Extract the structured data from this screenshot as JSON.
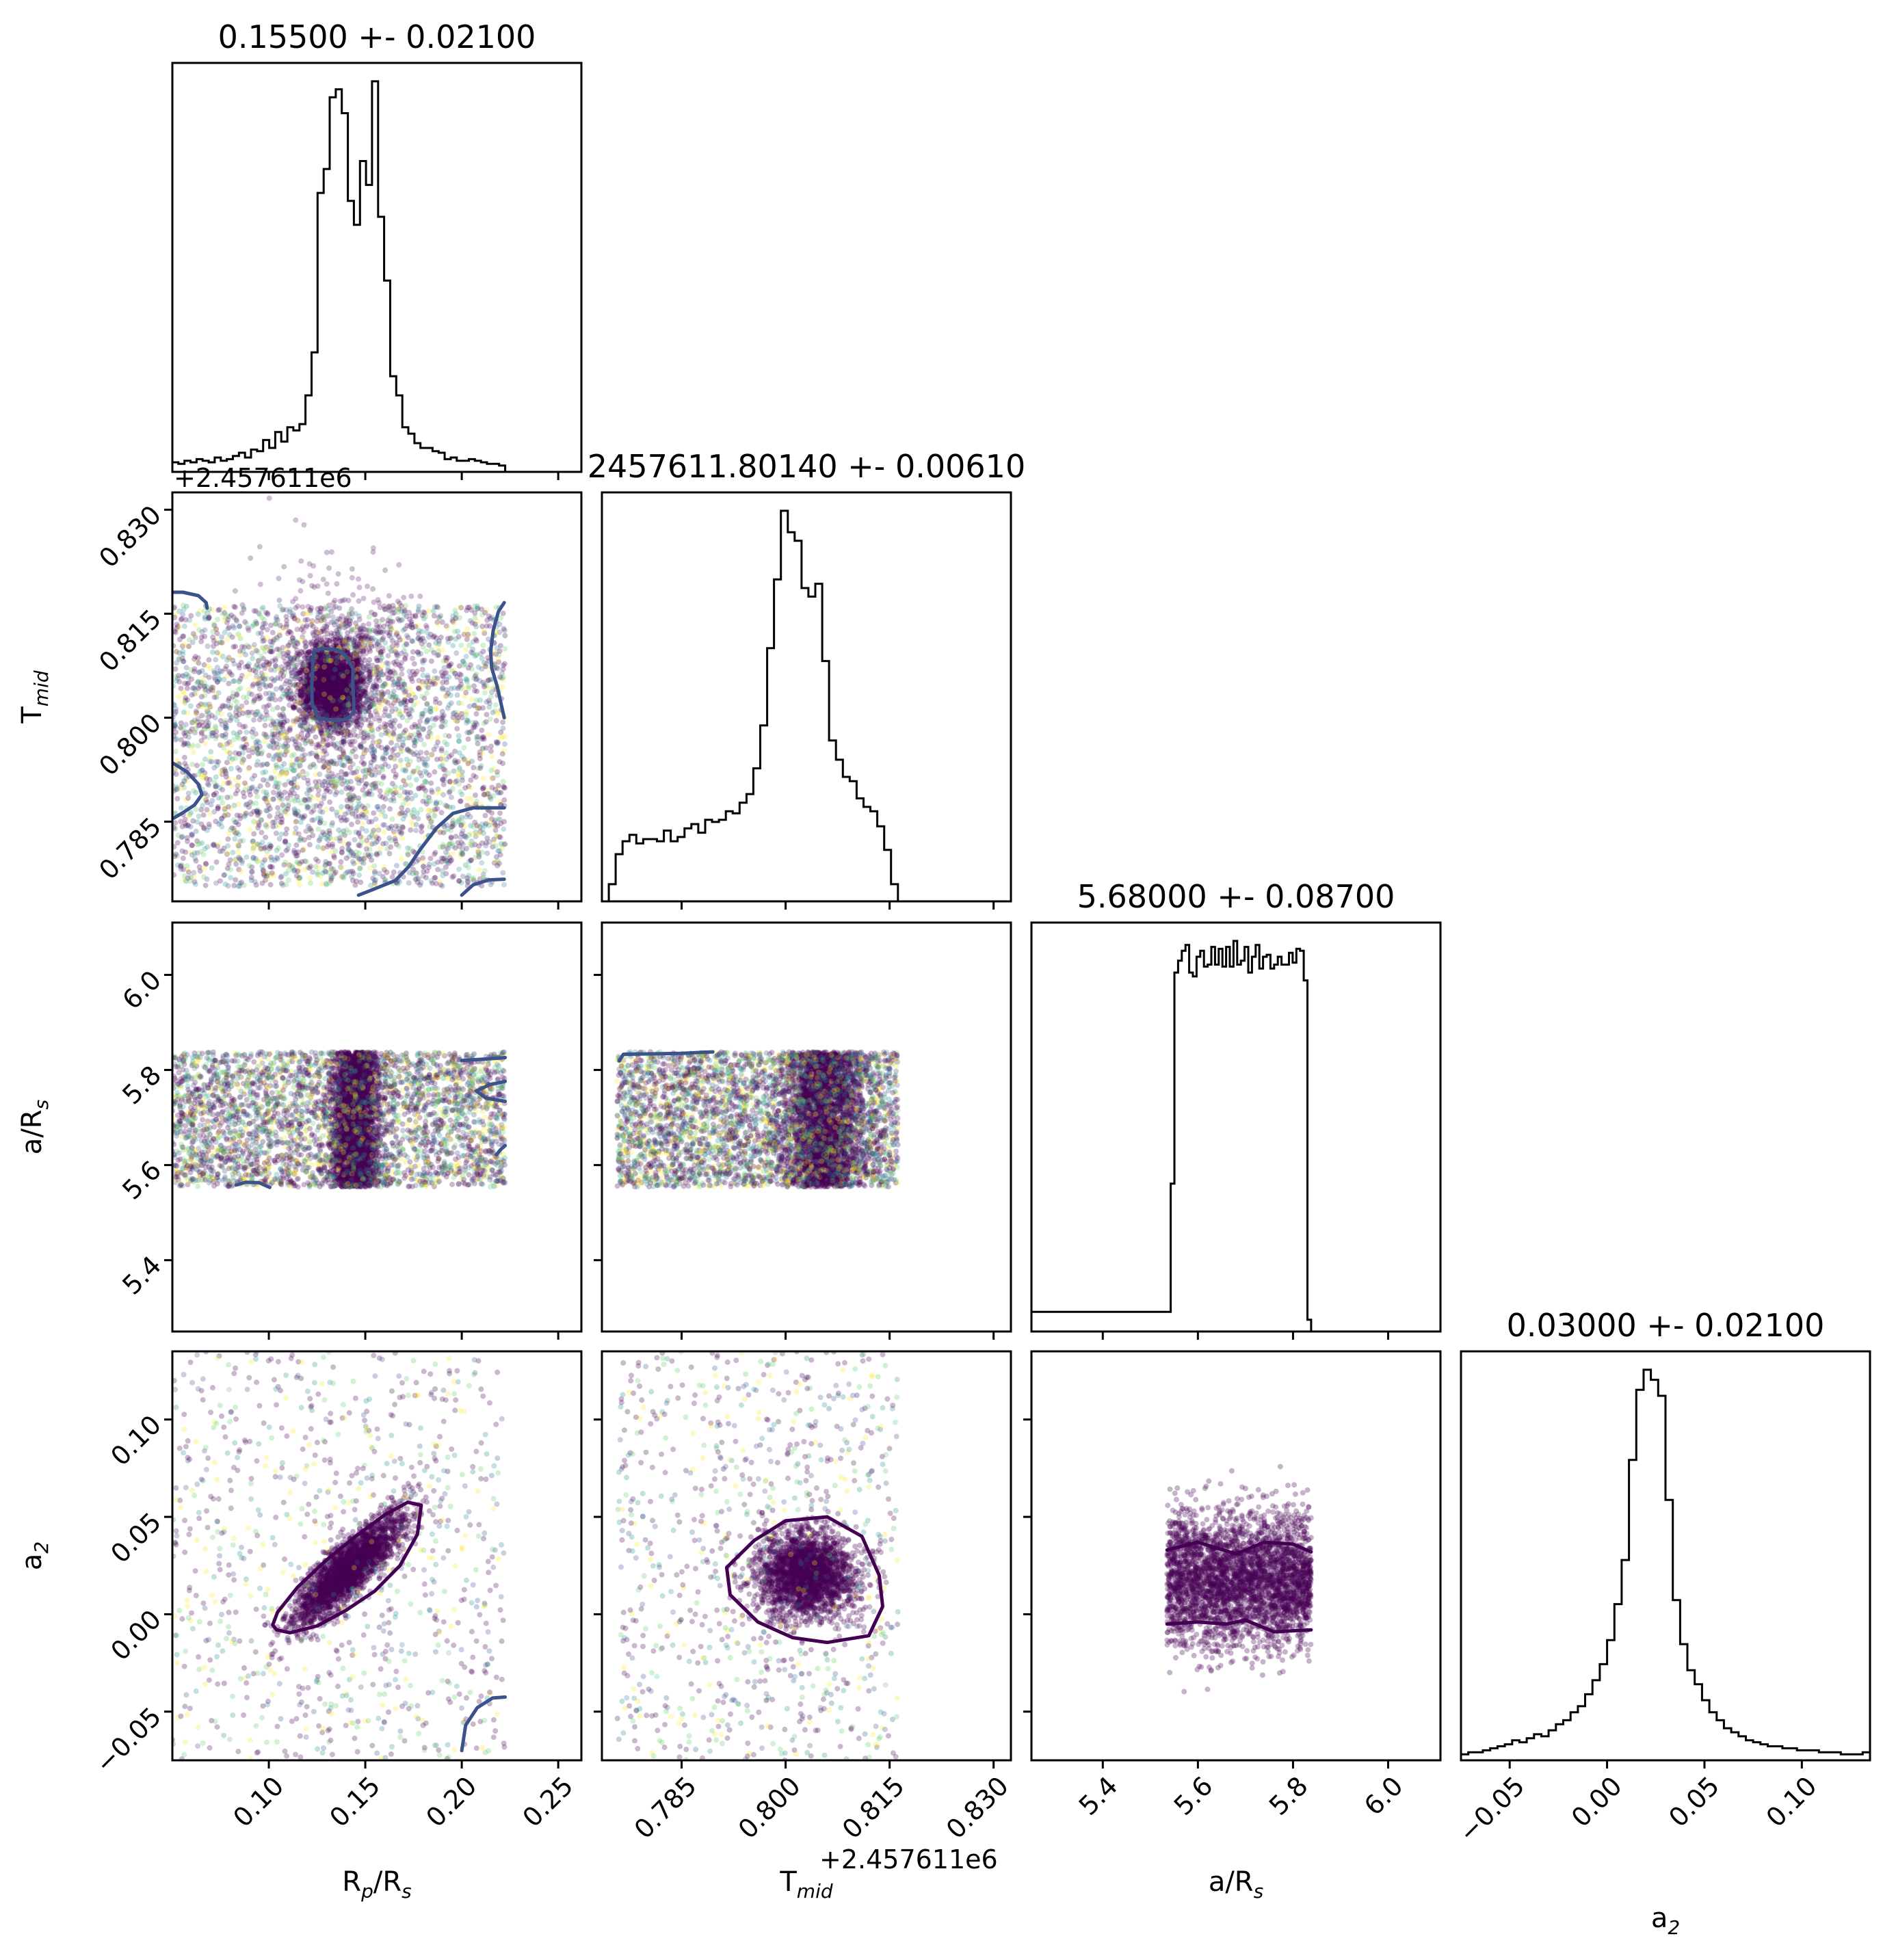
{
  "chart_data": {
    "type": "corner",
    "parameters": [
      {
        "key": "rp",
        "label_main": "R",
        "label_sub": "p",
        "label_tail": "/R",
        "label_sub2": "s",
        "range": [
          0.05,
          0.262
        ],
        "ticks": [
          "0.10",
          "0.15",
          "0.20",
          "0.25"
        ],
        "tick_values": [
          0.1,
          0.15,
          0.2,
          0.25
        ]
      },
      {
        "key": "tmid",
        "label_main": "T",
        "label_sub": "mid",
        "label_tail": "",
        "label_sub2": "",
        "range": [
          0.7735,
          0.8325
        ],
        "ticks": [
          "0.785",
          "0.800",
          "0.815",
          "0.830"
        ],
        "tick_values": [
          0.785,
          0.8,
          0.815,
          0.83
        ],
        "offset": "+2.457611e6"
      },
      {
        "key": "ars",
        "label_main": "a/R",
        "label_sub": "s",
        "label_tail": "",
        "label_sub2": "",
        "range": [
          5.25,
          6.11
        ],
        "ticks": [
          "5.4",
          "5.6",
          "5.8",
          "6.0"
        ],
        "tick_values": [
          5.4,
          5.6,
          5.8,
          6.0
        ]
      },
      {
        "key": "a2",
        "label_main": "a",
        "label_sub": "2",
        "label_tail": "",
        "label_sub2": "",
        "range": [
          -0.075,
          0.135
        ],
        "ticks": [
          "−0.05",
          "0.00",
          "0.05",
          "0.10"
        ],
        "tick_values": [
          -0.05,
          0.0,
          0.05,
          0.1
        ]
      }
    ],
    "titles": [
      "0.15500 +- 0.02100",
      "2457611.80140 +- 0.00610",
      "5.68000 +- 0.08700",
      "0.03000 +- 0.02100"
    ],
    "colors": {
      "histogram": "#000000",
      "points": "#440154",
      "contour_main": "#440154",
      "contour_secondary": "#3b528b"
    },
    "histograms": [
      {
        "edges": [
          0.05,
          0.2225
        ],
        "counts": [
          6,
          5,
          7,
          6,
          8,
          7,
          6,
          9,
          7,
          8,
          10,
          12,
          9,
          14,
          13,
          20,
          15,
          25,
          19,
          28,
          26,
          30,
          48,
          75,
          175,
          190,
          235,
          240,
          225,
          170,
          155,
          195,
          180,
          245,
          160,
          120,
          60,
          48,
          28,
          24,
          18,
          15,
          15,
          13,
          12,
          8,
          9,
          7,
          7,
          8,
          7,
          6,
          5,
          5,
          4
        ]
      },
      {
        "edges": [
          0.7735,
          0.8162
        ],
        "counts": [
          0,
          8,
          22,
          28,
          31,
          27,
          29,
          29,
          28,
          33,
          28,
          30,
          34,
          36,
          32,
          38,
          37,
          38,
          42,
          41,
          46,
          50,
          62,
          82,
          118,
          150,
          182,
          172,
          168,
          146,
          142,
          148,
          112,
          75,
          66,
          58,
          56,
          48,
          44,
          42,
          35,
          24,
          8
        ]
      },
      {
        "edges": [
          5.535,
          5.838
        ],
        "counts": [
          10,
          75,
          182,
          188,
          193,
          196,
          182,
          180,
          190,
          193,
          185,
          186,
          195,
          186,
          194,
          185,
          195,
          185,
          198,
          186,
          188,
          195,
          182,
          190,
          196,
          184,
          190,
          191,
          184,
          186,
          190,
          186,
          186,
          192,
          187,
          194,
          193,
          178,
          6
        ]
      },
      {
        "edges": [
          -0.075,
          0.135
        ],
        "counts": [
          3,
          4,
          4,
          5,
          6,
          7,
          8,
          10,
          9,
          11,
          13,
          12,
          15,
          18,
          20,
          24,
          27,
          33,
          40,
          48,
          60,
          78,
          100,
          150,
          185,
          195,
          190,
          182,
          130,
          80,
          58,
          45,
          38,
          30,
          24,
          20,
          16,
          14,
          12,
          10,
          9,
          8,
          7,
          7,
          6,
          6,
          5,
          5,
          5,
          4,
          4,
          4,
          3,
          3,
          3,
          4
        ]
      }
    ],
    "scatter_pairs": [
      {
        "row": 1,
        "col": 0,
        "contours": [
          {
            "color": "secondary",
            "points": [
              [
                0.1235,
                0.8096
              ],
              [
                0.1275,
                0.81
              ],
              [
                0.1355,
                0.8098
              ],
              [
                0.1395,
                0.809
              ],
              [
                0.1436,
                0.8071
              ],
              [
                0.1435,
                0.8046
              ],
              [
                0.144,
                0.8025
              ],
              [
                0.144,
                0.8008
              ],
              [
                0.1405,
                0.7998
              ],
              [
                0.1345,
                0.7996
              ],
              [
                0.1255,
                0.7999
              ],
              [
                0.1225,
                0.8019
              ],
              [
                0.1223,
                0.8046
              ],
              [
                0.1227,
                0.8076
              ],
              [
                0.1235,
                0.8096
              ]
            ]
          },
          {
            "color": "secondary",
            "points": [
              [
                0.05,
                0.7935
              ],
              [
                0.0575,
                0.7922
              ],
              [
                0.0635,
                0.7904
              ],
              [
                0.0653,
                0.7889
              ],
              [
                0.0615,
                0.7874
              ],
              [
                0.0555,
                0.7863
              ],
              [
                0.05,
                0.7854
              ]
            ]
          },
          {
            "color": "secondary",
            "points": [
              [
                0.05,
                0.8181
              ],
              [
                0.0555,
                0.8181
              ],
              [
                0.0635,
                0.8176
              ],
              [
                0.0675,
                0.8166
              ],
              [
                0.068,
                0.8158
              ]
            ]
          },
          {
            "color": "secondary",
            "points": [
              [
                0.222,
                0.8166
              ],
              [
                0.219,
                0.8153
              ],
              [
                0.2163,
                0.8126
              ],
              [
                0.215,
                0.8096
              ],
              [
                0.2155,
                0.8072
              ],
              [
                0.2183,
                0.8046
              ],
              [
                0.222,
                0.8
              ]
            ]
          },
          {
            "color": "secondary",
            "points": [
              [
                0.1465,
                0.7744
              ],
              [
                0.153,
                0.7751
              ],
              [
                0.1655,
                0.7765
              ],
              [
                0.1725,
                0.7785
              ],
              [
                0.1785,
                0.781
              ],
              [
                0.187,
                0.7841
              ],
              [
                0.1955,
                0.7862
              ],
              [
                0.206,
                0.787
              ],
              [
                0.222,
                0.787
              ]
            ]
          },
          {
            "color": "secondary",
            "points": [
              [
                0.2,
                0.7744
              ],
              [
                0.206,
                0.7759
              ],
              [
                0.214,
                0.7766
              ],
              [
                0.222,
                0.7767
              ]
            ]
          }
        ],
        "clusters": [
          {
            "cx": 0.1332,
            "cy": 0.8047,
            "sx": 0.008,
            "sy": 0.0028,
            "n": 2200,
            "alpha": 0.3
          },
          {
            "cx": 0.1335,
            "cy": 0.8045,
            "sx": 0.022,
            "sy": 0.008,
            "n": 900,
            "alpha": 0.25
          },
          {
            "uniform": true,
            "xr": [
              0.05,
              0.2225
            ],
            "yr": [
              0.7757,
              0.8162
            ],
            "n": 3200,
            "alpha": 0.28
          }
        ]
      },
      {
        "row": 2,
        "col": 0,
        "contours": [
          {
            "color": "secondary",
            "points": [
              [
                0.2225,
                5.826
              ],
              [
                0.216,
                5.824
              ],
              [
                0.2,
                5.82
              ]
            ]
          },
          {
            "color": "secondary",
            "points": [
              [
                0.2225,
                5.776
              ],
              [
                0.2145,
                5.769
              ],
              [
                0.2075,
                5.756
              ],
              [
                0.2125,
                5.741
              ],
              [
                0.2225,
                5.734
              ]
            ]
          },
          {
            "color": "secondary",
            "points": [
              [
                0.2225,
                5.641
              ],
              [
                0.22,
                5.632
              ],
              [
                0.218,
                5.622
              ]
            ]
          },
          {
            "color": "secondary",
            "points": [
              [
                0.083,
                5.558
              ],
              [
                0.088,
                5.564
              ],
              [
                0.095,
                5.563
              ],
              [
                0.1005,
                5.553
              ]
            ]
          }
        ],
        "clusters": [
          {
            "band": "x",
            "cx": 0.145,
            "sx": 0.006,
            "yr": [
              5.554,
              5.838
            ],
            "n": 2800,
            "alpha": 0.3
          },
          {
            "uniform": true,
            "xr": [
              0.05,
              0.2225
            ],
            "yr": [
              5.554,
              5.838
            ],
            "n": 3600,
            "alpha": 0.28
          }
        ]
      },
      {
        "row": 2,
        "col": 1,
        "contours": [
          {
            "color": "secondary",
            "points": [
              [
                0.776,
                5.819
              ],
              [
                0.7766,
                5.833
              ],
              [
                0.785,
                5.835
              ],
              [
                0.7895,
                5.838
              ]
            ]
          }
        ],
        "clusters": [
          {
            "band": "x",
            "cx": 0.8055,
            "sx": 0.0028,
            "yr": [
              5.554,
              5.838
            ],
            "n": 2800,
            "alpha": 0.3
          },
          {
            "uniform": true,
            "xr": [
              0.7757,
              0.8162
            ],
            "yr": [
              5.554,
              5.838
            ],
            "n": 3600,
            "alpha": 0.28
          }
        ]
      },
      {
        "row": 3,
        "col": 0,
        "contours": [
          {
            "color": "main",
            "points": [
              [
                0.102,
                -0.0055
              ],
              [
                0.1045,
                0.001
              ],
              [
                0.115,
                0.014
              ],
              [
                0.13,
                0.028
              ],
              [
                0.145,
                0.04
              ],
              [
                0.16,
                0.051
              ],
              [
                0.172,
                0.0575
              ],
              [
                0.179,
                0.056
              ],
              [
                0.177,
                0.041
              ],
              [
                0.168,
                0.025
              ],
              [
                0.155,
                0.012
              ],
              [
                0.14,
                0.002
              ],
              [
                0.125,
                -0.006
              ],
              [
                0.111,
                -0.0095
              ],
              [
                0.104,
                -0.008
              ],
              [
                0.102,
                -0.0055
              ]
            ]
          },
          {
            "color": "secondary",
            "points": [
              [
                0.2225,
                -0.0425
              ],
              [
                0.216,
                -0.043
              ],
              [
                0.208,
                -0.048
              ],
              [
                0.202,
                -0.057
              ],
              [
                0.2,
                -0.07
              ]
            ]
          }
        ],
        "clusters": [
          {
            "corr": true,
            "cx": 0.141,
            "cy": 0.023,
            "sx": 0.014,
            "sy": 0.014,
            "rho": 0.85,
            "n": 2600,
            "alpha": 0.3
          },
          {
            "uniform": true,
            "xr": [
              0.05,
              0.2225
            ],
            "yr": [
              -0.075,
              0.135
            ],
            "n": 900,
            "alpha": 0.28
          }
        ]
      },
      {
        "row": 3,
        "col": 1,
        "contours": [
          {
            "color": "main",
            "points": [
              [
                0.7955,
                0.038
              ],
              [
                0.8,
                0.048
              ],
              [
                0.806,
                0.05
              ],
              [
                0.811,
                0.04
              ],
              [
                0.8135,
                0.02
              ],
              [
                0.814,
                0.004
              ],
              [
                0.812,
                -0.011
              ],
              [
                0.806,
                -0.0145
              ],
              [
                0.801,
                -0.012
              ],
              [
                0.796,
                -0.004
              ],
              [
                0.792,
                0.01
              ],
              [
                0.7915,
                0.024
              ],
              [
                0.7955,
                0.038
              ]
            ]
          }
        ],
        "clusters": [
          {
            "cx": 0.803,
            "cy": 0.02,
            "sx": 0.0035,
            "sy": 0.011,
            "n": 2400,
            "alpha": 0.3
          },
          {
            "uniform": true,
            "xr": [
              0.7757,
              0.8162
            ],
            "yr": [
              -0.075,
              0.135
            ],
            "n": 900,
            "alpha": 0.28
          }
        ]
      },
      {
        "row": 3,
        "col": 2,
        "contours": [
          {
            "color": "main",
            "points": [
              [
                5.535,
                0.033
              ],
              [
                5.6,
                0.037
              ],
              [
                5.68,
                0.031
              ],
              [
                5.74,
                0.037
              ],
              [
                5.8,
                0.036
              ],
              [
                5.838,
                0.032
              ]
            ]
          },
          {
            "color": "main",
            "points": [
              [
                5.535,
                -0.005
              ],
              [
                5.6,
                -0.004
              ],
              [
                5.66,
                -0.005
              ],
              [
                5.7,
                -0.003
              ],
              [
                5.76,
                -0.009
              ],
              [
                5.838,
                -0.008
              ]
            ]
          }
        ],
        "clusters": [
          {
            "band": "y",
            "cy": 0.018,
            "sy": 0.017,
            "xr": [
              5.535,
              5.838
            ],
            "n": 3400,
            "alpha": 0.3
          }
        ]
      }
    ]
  }
}
